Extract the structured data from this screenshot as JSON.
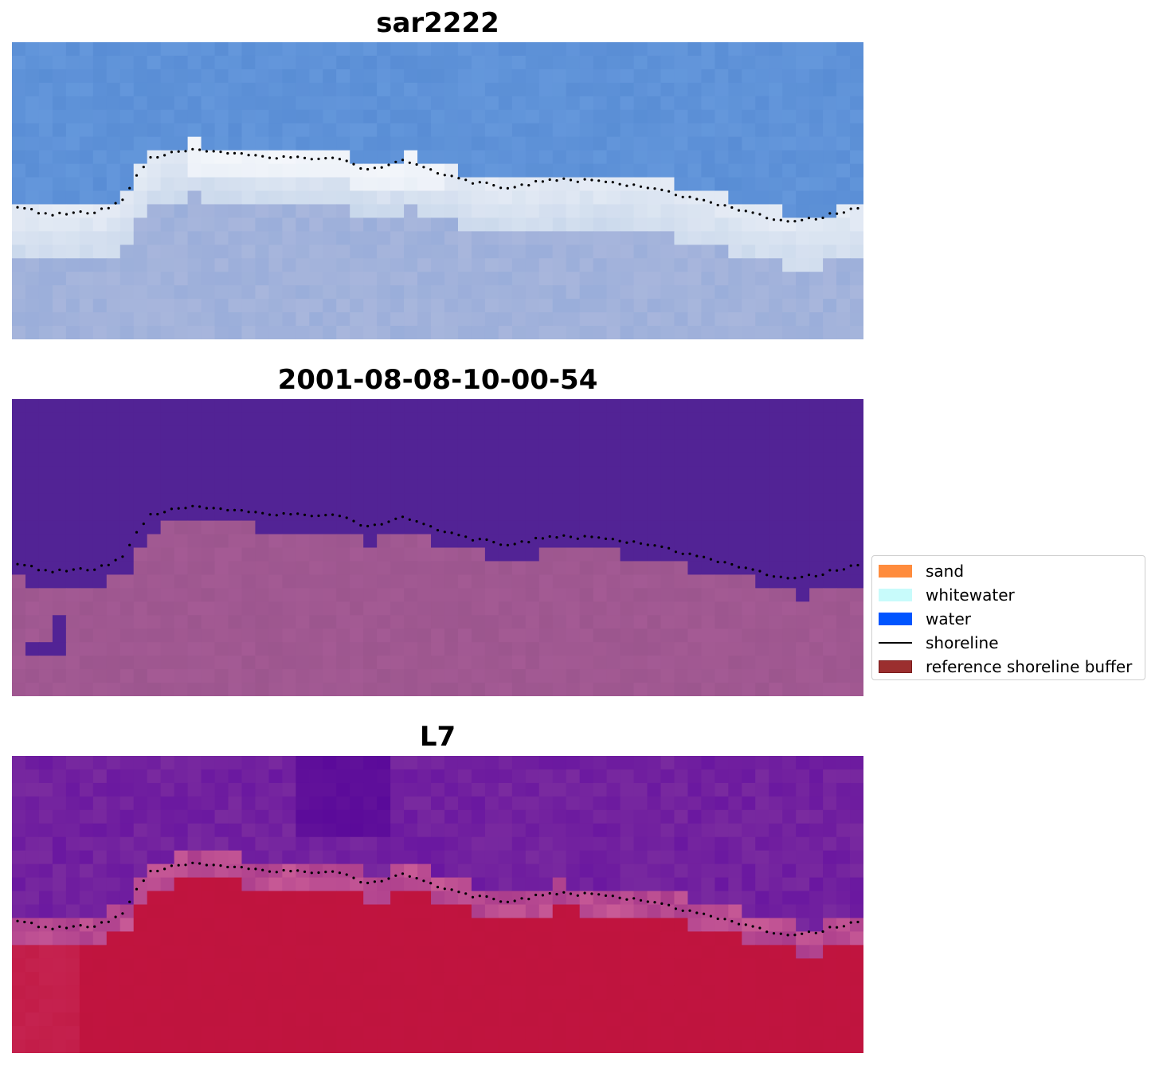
{
  "panels": [
    {
      "title": "sar2222"
    },
    {
      "title": "2001-08-08-10-00-54"
    },
    {
      "title": "L7"
    }
  ],
  "legend": {
    "items": [
      {
        "label": "sand",
        "color": "#ff8c3d",
        "kind": "patch"
      },
      {
        "label": "whitewater",
        "color": "#c8fbfb",
        "kind": "patch"
      },
      {
        "label": "water",
        "color": "#0055ff",
        "kind": "patch"
      },
      {
        "label": "shoreline",
        "color": "#000000",
        "kind": "line"
      },
      {
        "label": "reference shoreline buffer",
        "color": "#9b2f2f",
        "kind": "patch",
        "edge": "#7a1b1b"
      }
    ]
  },
  "colors": {
    "rgb_sky": "#5b8fd6",
    "rgb_surf": "#e9eef6",
    "rgb_land": "#a8b6dc",
    "class_background": "#522395",
    "class_land": "#a05891",
    "nir_water": "#7a2b9f",
    "nir_land": "#c0143f",
    "shoreline_dots": "#000000"
  }
}
